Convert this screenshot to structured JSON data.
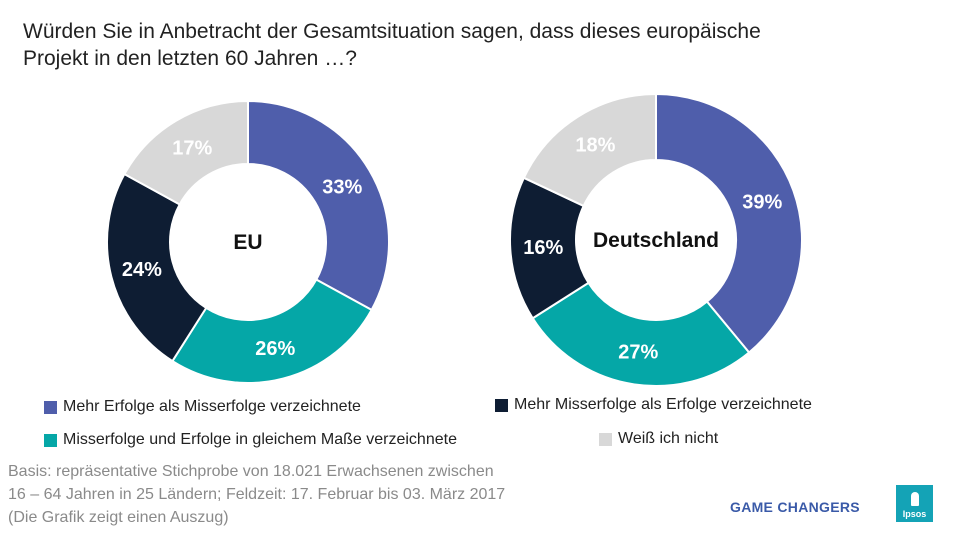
{
  "title_line1": "Würden Sie in Anbetracht der Gesamtsituation sagen, dass dieses europäische",
  "title_line2": "Projekt in den letzten 60 Jahren …?",
  "chart_data": {
    "type": "pie",
    "title": "Würden Sie in Anbetracht der Gesamtsituation sagen, dass dieses europäische Projekt in den letzten 60 Jahren …?",
    "categories": [
      "Mehr Erfolge als Misserfolge verzeichnete",
      "Misserfolge und Erfolge in gleichem Maße verzeichnete",
      "Mehr Misserfolge als Erfolge verzeichnete",
      "Weiß ich nicht"
    ],
    "colors": [
      "#4f5eab",
      "#05a7a7",
      "#0e1d33",
      "#d8d8d8"
    ],
    "label_colors": [
      "#ffffff",
      "#ffffff",
      "#ffffff",
      "#ffffff"
    ],
    "series": [
      {
        "name": "EU",
        "values": [
          33,
          26,
          24,
          17
        ],
        "labels": [
          "33%",
          "26%",
          "24%",
          "17%"
        ]
      },
      {
        "name": "Deutschland",
        "values": [
          39,
          27,
          16,
          18
        ],
        "labels": [
          "39%",
          "27%",
          "16%",
          "18%"
        ]
      }
    ]
  },
  "legend": [
    {
      "label": "Mehr Erfolge als Misserfolge verzeichnete",
      "color": "#4f5eab"
    },
    {
      "label": "Mehr Misserfolge als Erfolge verzeichnete",
      "color": "#0e1d33"
    },
    {
      "label": "Misserfolge und Erfolge in gleichem Maße verzeichnete",
      "color": "#05a7a7"
    },
    {
      "label": "Weiß ich nicht",
      "color": "#d8d8d8"
    }
  ],
  "basis_line1": "Basis: repräsentative Stichprobe von 18.021 Erwachsenen zwischen",
  "basis_line2": "16 – 64 Jahren in 25 Ländern; Feldzeit: 17. Februar bis 03. März 2017",
  "basis_line3": "(Die Grafik zeigt einen Auszug)",
  "brand_text": "GAME CHANGERS",
  "logo_text": "Ipsos"
}
